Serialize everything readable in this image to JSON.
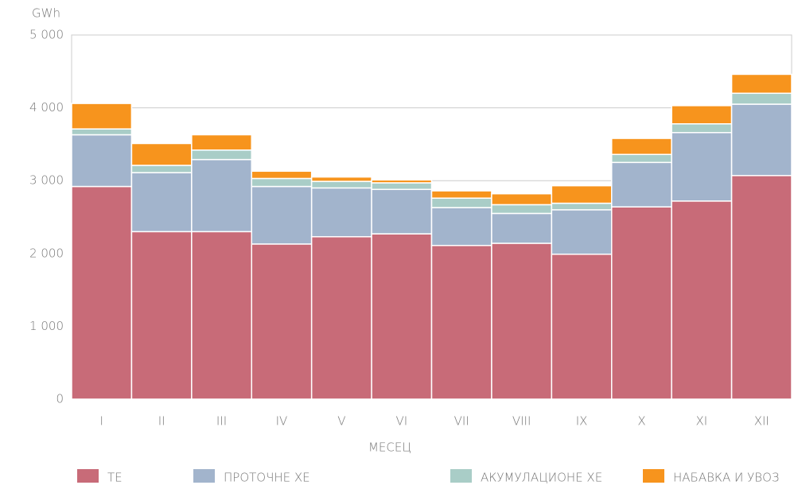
{
  "chart_data": {
    "type": "stacked_bar",
    "y_unit": "GWh",
    "xlabel": "МЕСЕЦ",
    "categories": [
      "I",
      "II",
      "III",
      "IV",
      "V",
      "VI",
      "VII",
      "VIII",
      "IX",
      "X",
      "XI",
      "XII"
    ],
    "series": [
      {
        "name": "ТЕ",
        "color": "#c86b78",
        "values": [
          2920,
          2300,
          2300,
          2130,
          2230,
          2270,
          2110,
          2140,
          1990,
          2640,
          2720,
          3070
        ]
      },
      {
        "name": "ПРОТОЧНЕ ХЕ",
        "color": "#a2b4cc",
        "values": [
          710,
          810,
          990,
          790,
          670,
          610,
          520,
          410,
          610,
          610,
          940,
          980
        ]
      },
      {
        "name": "АКУМУЛАЦИОНЕ ХЕ",
        "color": "#a9cdc7",
        "values": [
          80,
          100,
          130,
          110,
          90,
          90,
          130,
          120,
          90,
          110,
          120,
          150
        ]
      },
      {
        "name": "НАБАВКА И УВОЗ",
        "color": "#f7941d",
        "values": [
          350,
          300,
          210,
          100,
          60,
          40,
          100,
          150,
          240,
          220,
          250,
          260
        ]
      }
    ],
    "ylim": [
      0,
      5000
    ],
    "yticks": [
      0,
      {
        "value": 1000,
        "label": "1 000"
      },
      {
        "value": 2000,
        "label": "2 000"
      },
      {
        "value": 3000,
        "label": "3 000"
      },
      {
        "value": 4000,
        "label": "4 000"
      },
      {
        "value": 5000,
        "label": "5 000"
      }
    ],
    "grid": true,
    "legend": "bottom"
  }
}
